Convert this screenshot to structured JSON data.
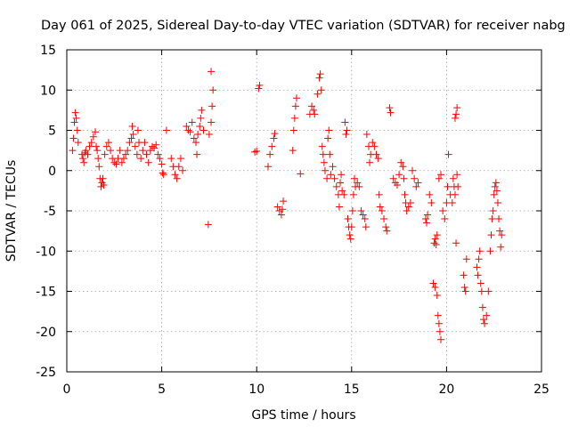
{
  "chart_data": {
    "type": "scatter",
    "title": "Day 061 of 2025, Sidereal Day-to-day VTEC variation (SDTVAR) for receiver nabg",
    "xlabel": "GPS time / hours",
    "ylabel": "SDTVAR / TECUs",
    "xlim": [
      0,
      25
    ],
    "ylim": [
      -25,
      15
    ],
    "xticks": [
      0,
      5,
      10,
      15,
      20,
      25
    ],
    "yticks": [
      -25,
      -20,
      -15,
      -10,
      -5,
      0,
      5,
      10,
      15
    ],
    "grid": true,
    "marker": "+",
    "color": "#ff0000",
    "series": [
      {
        "name": "SDTVAR",
        "points": [
          [
            0.3,
            2.5
          ],
          [
            0.35,
            4
          ],
          [
            0.4,
            6
          ],
          [
            0.45,
            7.2
          ],
          [
            0.5,
            6.5
          ],
          [
            0.55,
            5
          ],
          [
            0.6,
            3.5
          ],
          [
            0.8,
            2
          ],
          [
            0.85,
            1.5
          ],
          [
            0.9,
            1
          ],
          [
            0.95,
            2.2
          ],
          [
            1.0,
            2.5
          ],
          [
            1.1,
            2
          ],
          [
            1.2,
            3
          ],
          [
            1.3,
            3.5
          ],
          [
            1.4,
            4.2
          ],
          [
            1.5,
            4.8
          ],
          [
            1.55,
            3
          ],
          [
            1.6,
            2.5
          ],
          [
            1.65,
            1.5
          ],
          [
            1.7,
            0.5
          ],
          [
            1.75,
            -1
          ],
          [
            1.8,
            -2
          ],
          [
            1.85,
            -1.5
          ],
          [
            1.9,
            -1
          ],
          [
            1.95,
            -1.8
          ],
          [
            2.0,
            2
          ],
          [
            2.1,
            3
          ],
          [
            2.2,
            3.5
          ],
          [
            2.3,
            2.5
          ],
          [
            2.4,
            1.5
          ],
          [
            2.5,
            1
          ],
          [
            2.6,
            0.8
          ],
          [
            2.7,
            1.5
          ],
          [
            2.8,
            2.5
          ],
          [
            2.9,
            1
          ],
          [
            3.0,
            1.5
          ],
          [
            3.1,
            2
          ],
          [
            3.2,
            2.5
          ],
          [
            3.3,
            3.5
          ],
          [
            3.4,
            4
          ],
          [
            3.45,
            5.5
          ],
          [
            3.5,
            4.5
          ],
          [
            3.6,
            3
          ],
          [
            3.7,
            2
          ],
          [
            3.75,
            5
          ],
          [
            3.8,
            3.5
          ],
          [
            3.9,
            1.5
          ],
          [
            4.0,
            2.5
          ],
          [
            4.1,
            3.5
          ],
          [
            4.2,
            2
          ],
          [
            4.3,
            1
          ],
          [
            4.4,
            2.5
          ],
          [
            4.5,
            3
          ],
          [
            4.6,
            2.8
          ],
          [
            4.7,
            3.2
          ],
          [
            4.8,
            2
          ],
          [
            4.9,
            1.5
          ],
          [
            5.0,
            0.8
          ],
          [
            5.05,
            -0.3
          ],
          [
            5.1,
            -0.5
          ],
          [
            5.25,
            5
          ],
          [
            5.5,
            1.5
          ],
          [
            5.6,
            0.5
          ],
          [
            5.7,
            -0.5
          ],
          [
            5.8,
            -1
          ],
          [
            5.9,
            0.5
          ],
          [
            6.0,
            1.5
          ],
          [
            6.1,
            0
          ],
          [
            6.3,
            5.5
          ],
          [
            6.4,
            5
          ],
          [
            6.5,
            4.8
          ],
          [
            6.6,
            6
          ],
          [
            6.7,
            4
          ],
          [
            6.8,
            3.5
          ],
          [
            6.9,
            4.5
          ],
          [
            7.0,
            5.5
          ],
          [
            7.05,
            6.5
          ],
          [
            7.1,
            7.5
          ],
          [
            7.2,
            5
          ],
          [
            6.85,
            2
          ],
          [
            7.45,
            -6.7
          ],
          [
            7.5,
            4.5
          ],
          [
            7.6,
            6
          ],
          [
            7.65,
            8
          ],
          [
            7.7,
            10
          ],
          [
            7.6,
            12.3
          ],
          [
            9.9,
            2.3
          ],
          [
            10.0,
            2.4
          ],
          [
            10.1,
            10.2
          ],
          [
            10.15,
            10.6
          ],
          [
            10.6,
            0.5
          ],
          [
            10.7,
            2
          ],
          [
            10.8,
            3
          ],
          [
            10.9,
            4
          ],
          [
            10.95,
            4.6
          ],
          [
            11.1,
            -4.5
          ],
          [
            11.2,
            -5
          ],
          [
            11.3,
            -5.5
          ],
          [
            11.35,
            -4.8
          ],
          [
            11.4,
            -3.8
          ],
          [
            11.9,
            2.5
          ],
          [
            11.95,
            5
          ],
          [
            12.0,
            6.5
          ],
          [
            12.05,
            8
          ],
          [
            12.1,
            9
          ],
          [
            12.3,
            -0.4
          ],
          [
            12.8,
            7
          ],
          [
            12.9,
            8
          ],
          [
            13.0,
            7.5
          ],
          [
            13.05,
            7
          ],
          [
            13.2,
            9.5
          ],
          [
            13.3,
            11.5
          ],
          [
            13.35,
            12
          ],
          [
            13.4,
            10
          ],
          [
            13.45,
            3
          ],
          [
            13.5,
            2
          ],
          [
            13.55,
            1
          ],
          [
            13.6,
            0
          ],
          [
            13.7,
            -1
          ],
          [
            13.75,
            4
          ],
          [
            13.8,
            5
          ],
          [
            13.85,
            2
          ],
          [
            13.9,
            -0.5
          ],
          [
            14.0,
            0.5
          ],
          [
            14.1,
            -1
          ],
          [
            14.2,
            -2
          ],
          [
            14.3,
            -3
          ],
          [
            14.35,
            -4.5
          ],
          [
            14.4,
            -1.5
          ],
          [
            14.45,
            -0.5
          ],
          [
            14.5,
            -2.5
          ],
          [
            14.6,
            -3
          ],
          [
            14.65,
            6
          ],
          [
            14.7,
            4.5
          ],
          [
            14.75,
            5
          ],
          [
            14.8,
            -6
          ],
          [
            14.85,
            -7
          ],
          [
            14.9,
            -8
          ],
          [
            14.95,
            -8.5
          ],
          [
            15.0,
            -7
          ],
          [
            15.05,
            -5
          ],
          [
            15.1,
            -3
          ],
          [
            15.15,
            -1
          ],
          [
            15.2,
            -2
          ],
          [
            15.3,
            -1.5
          ],
          [
            15.4,
            -2
          ],
          [
            15.5,
            -5
          ],
          [
            15.6,
            -5.5
          ],
          [
            15.7,
            -6
          ],
          [
            15.75,
            -7
          ],
          [
            15.8,
            4.5
          ],
          [
            15.9,
            3
          ],
          [
            15.95,
            1
          ],
          [
            16.0,
            2
          ],
          [
            16.1,
            3.5
          ],
          [
            16.2,
            3
          ],
          [
            16.3,
            2
          ],
          [
            16.4,
            1.5
          ],
          [
            16.45,
            -3
          ],
          [
            16.5,
            -4.5
          ],
          [
            16.6,
            -5
          ],
          [
            16.7,
            -6
          ],
          [
            16.8,
            -7
          ],
          [
            16.85,
            -7.5
          ],
          [
            17.0,
            7.8
          ],
          [
            17.05,
            7.2
          ],
          [
            17.2,
            -1
          ],
          [
            17.3,
            -1.5
          ],
          [
            17.4,
            -1.8
          ],
          [
            17.5,
            -0.5
          ],
          [
            17.6,
            1
          ],
          [
            17.7,
            0.5
          ],
          [
            17.75,
            -1
          ],
          [
            17.8,
            -3
          ],
          [
            17.85,
            -4
          ],
          [
            17.9,
            -5
          ],
          [
            18.0,
            -4.5
          ],
          [
            18.1,
            -4
          ],
          [
            18.2,
            0
          ],
          [
            18.3,
            -1
          ],
          [
            18.4,
            -2
          ],
          [
            18.5,
            -1.5
          ],
          [
            18.9,
            -6
          ],
          [
            18.95,
            -6.5
          ],
          [
            19.0,
            -5.5
          ],
          [
            19.1,
            -3
          ],
          [
            19.2,
            -4
          ],
          [
            19.35,
            -9
          ],
          [
            19.4,
            -8.5
          ],
          [
            19.45,
            -9.2
          ],
          [
            19.5,
            -8
          ],
          [
            19.3,
            -14
          ],
          [
            19.4,
            -14.5
          ],
          [
            19.5,
            -15.5
          ],
          [
            19.55,
            -18
          ],
          [
            19.6,
            -19
          ],
          [
            19.65,
            -20
          ],
          [
            19.7,
            -21
          ],
          [
            19.6,
            -1
          ],
          [
            19.7,
            -0.5
          ],
          [
            19.8,
            -5
          ],
          [
            19.9,
            -6
          ],
          [
            20.0,
            -4
          ],
          [
            20.05,
            -2
          ],
          [
            20.1,
            2
          ],
          [
            20.2,
            -3
          ],
          [
            20.3,
            -4
          ],
          [
            20.35,
            -1
          ],
          [
            20.4,
            -2
          ],
          [
            20.45,
            -3
          ],
          [
            20.5,
            -9
          ],
          [
            20.55,
            -0.5
          ],
          [
            20.6,
            -2
          ],
          [
            20.45,
            6.5
          ],
          [
            20.5,
            7
          ],
          [
            20.55,
            7.8
          ],
          [
            20.9,
            -13
          ],
          [
            20.95,
            -14.5
          ],
          [
            21.0,
            -15
          ],
          [
            21.05,
            -11
          ],
          [
            21.6,
            -12
          ],
          [
            21.65,
            -13
          ],
          [
            21.7,
            -11
          ],
          [
            21.75,
            -10
          ],
          [
            21.8,
            -14
          ],
          [
            21.85,
            -15
          ],
          [
            21.9,
            -17
          ],
          [
            21.95,
            -18.5
          ],
          [
            22.0,
            -19
          ],
          [
            22.1,
            -18
          ],
          [
            22.2,
            -15
          ],
          [
            22.3,
            -10
          ],
          [
            22.35,
            -8
          ],
          [
            22.4,
            -6
          ],
          [
            22.45,
            -5
          ],
          [
            22.5,
            -3
          ],
          [
            22.55,
            -2
          ],
          [
            22.6,
            -1.5
          ],
          [
            22.65,
            -2.5
          ],
          [
            22.7,
            -4
          ],
          [
            22.75,
            -6
          ],
          [
            22.8,
            -7.5
          ],
          [
            22.85,
            -9.5
          ],
          [
            22.9,
            -8
          ]
        ]
      }
    ]
  }
}
